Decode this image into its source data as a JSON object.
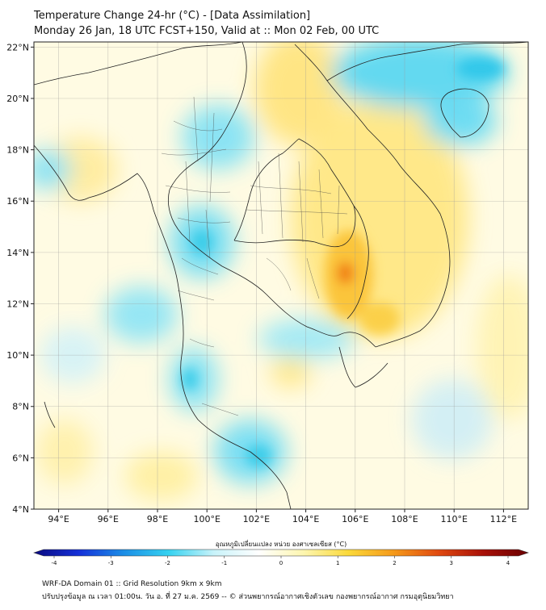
{
  "header": {
    "title_line1": "Temperature Change 24-hr (°C) - [Data Assimilation]",
    "title_line2": "Monday 26 Jan, 18 UTC FCST+150, Valid at :: Mon 02 Feb, 00 UTC"
  },
  "map": {
    "lon_range": [
      93,
      113
    ],
    "lat_range": [
      4,
      22.2
    ],
    "lon_ticks": [
      "94°E",
      "96°E",
      "98°E",
      "100°E",
      "102°E",
      "104°E",
      "106°E",
      "108°E",
      "110°E",
      "112°E"
    ],
    "lat_ticks": [
      "22°N",
      "20°N",
      "18°N",
      "16°N",
      "14°N",
      "12°N",
      "10°N",
      "8°N",
      "6°N",
      "4°N"
    ],
    "warm_anomaly": {
      "lon": 105.6,
      "lat": 13.2,
      "value": 2.5
    },
    "colors": {
      "cool": "#33ccee",
      "warm": "#ffcc33",
      "hot": "#f07a10",
      "neutral": "#fffde8"
    }
  },
  "colorbar": {
    "label": "อุณหภูมิเปลี่ยนแปลง หน่วย องศาเซลเซียส (°C)",
    "ticks": [
      "-4",
      "-3",
      "-2",
      "-1",
      "0",
      "1",
      "2",
      "3",
      "4"
    ],
    "stops": [
      "#0a0a80",
      "#1530d8",
      "#1b8ee6",
      "#35d2f0",
      "#c8f3fa",
      "#ffffff",
      "#fdf6b0",
      "#fbd93a",
      "#f59a1a",
      "#e04a10",
      "#a81008",
      "#6a0000"
    ]
  },
  "footer": {
    "line1": "WRF-DA Domain 01 :: Grid Resolution 9km x 9km",
    "line2": "ปรับปรุงข้อมูล ณ เวลา 01:00น. วัน อ. ที่ 27 ม.ค. 2569 -- © ส่วนพยากรณ์อากาศเชิงตัวเลข กองพยากรณ์อากาศ กรมอุตุนิยมวิทยา"
  }
}
